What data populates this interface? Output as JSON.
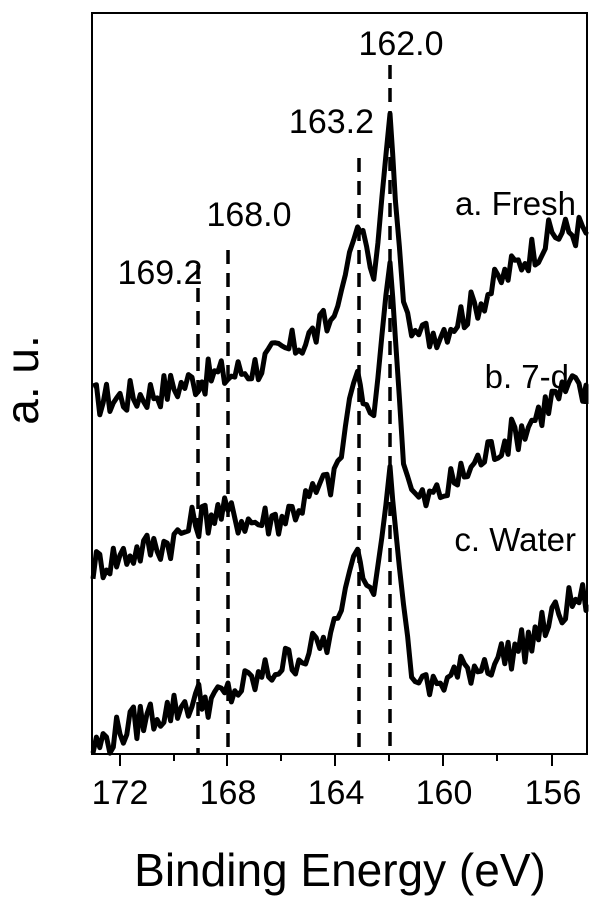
{
  "chart_data": {
    "type": "line",
    "title": "",
    "xlabel": "Binding Energy (eV)",
    "ylabel": "a. u.",
    "xlim": [
      173.0,
      154.6
    ],
    "x_reversed": true,
    "grid": false,
    "legend": "inline labels",
    "xticks": [
      172,
      170,
      168,
      166,
      164,
      162,
      160,
      158,
      156
    ],
    "xtick_labels": [
      "172",
      "168",
      "164",
      "160",
      "156"
    ],
    "reference_lines": [
      {
        "x": 169.2,
        "label": "169.2",
        "style": "dashed"
      },
      {
        "x": 168.0,
        "label": "168.0",
        "style": "dashed"
      },
      {
        "x": 163.2,
        "label": "163.2",
        "style": "dashed"
      },
      {
        "x": 162.0,
        "label": "162.0",
        "style": "dashed"
      }
    ],
    "series": [
      {
        "name": "a. Fresh",
        "x": [
          173.0,
          172.0,
          171.0,
          170.0,
          169.2,
          168.5,
          168.0,
          167.0,
          166.0,
          165.0,
          164.2,
          163.8,
          163.5,
          163.2,
          163.0,
          162.6,
          162.3,
          162.0,
          161.8,
          161.5,
          161.2,
          160.8,
          160.0,
          159.0,
          158.0,
          157.0,
          156.0,
          155.0,
          154.6
        ],
        "y_rel": [
          0.0,
          0.2,
          0.6,
          1.2,
          1.8,
          2.2,
          2.2,
          3.0,
          4.2,
          5.6,
          7.0,
          9.5,
          13.0,
          15.5,
          15.0,
          10.5,
          18.0,
          25.5,
          18.0,
          9.0,
          6.0,
          5.8,
          6.5,
          8.2,
          10.5,
          12.8,
          14.8,
          15.2,
          15.0
        ]
      },
      {
        "name": "b. 7-d",
        "x": [
          173.0,
          172.0,
          171.0,
          170.0,
          169.2,
          168.5,
          168.0,
          167.0,
          166.0,
          165.0,
          164.2,
          163.8,
          163.5,
          163.2,
          163.0,
          162.6,
          162.3,
          162.0,
          161.8,
          161.5,
          161.2,
          160.8,
          160.0,
          159.0,
          158.0,
          157.0,
          156.0,
          155.0,
          154.6
        ],
        "y_rel": [
          0.0,
          0.8,
          1.5,
          2.2,
          3.8,
          4.6,
          4.4,
          3.8,
          4.2,
          5.8,
          7.4,
          9.5,
          14.5,
          17.0,
          14.0,
          13.0,
          20.0,
          26.5,
          20.0,
          9.0,
          6.5,
          5.5,
          6.5,
          8.5,
          10.5,
          12.0,
          14.5,
          15.5,
          14.0
        ]
      },
      {
        "name": "c. Water",
        "x": [
          173.0,
          172.0,
          171.0,
          170.0,
          169.2,
          168.5,
          168.0,
          167.0,
          166.0,
          165.0,
          164.2,
          163.8,
          163.5,
          163.2,
          163.0,
          162.6,
          162.3,
          162.0,
          161.8,
          161.5,
          161.2,
          160.8,
          160.0,
          159.0,
          158.0,
          157.0,
          156.0,
          155.0,
          154.6
        ],
        "y_rel": [
          0.0,
          1.5,
          2.8,
          3.5,
          4.4,
          4.2,
          4.8,
          6.0,
          7.5,
          8.6,
          9.8,
          12.2,
          16.0,
          18.0,
          15.2,
          14.0,
          19.0,
          25.0,
          19.5,
          13.0,
          6.5,
          5.2,
          6.0,
          7.2,
          8.0,
          9.2,
          11.5,
          13.5,
          12.8
        ]
      }
    ]
  },
  "labels": {
    "series_a": "a. Fresh",
    "series_b": "b. 7-d",
    "series_c": "c. Water",
    "anno_1620": "162.0",
    "anno_1632": "163.2",
    "anno_1680": "168.0",
    "anno_1692": "169.2",
    "xlabel": "Binding Energy (eV)",
    "ylabel": "a. u.",
    "ticks": [
      "172",
      "168",
      "164",
      "160",
      "156"
    ]
  }
}
